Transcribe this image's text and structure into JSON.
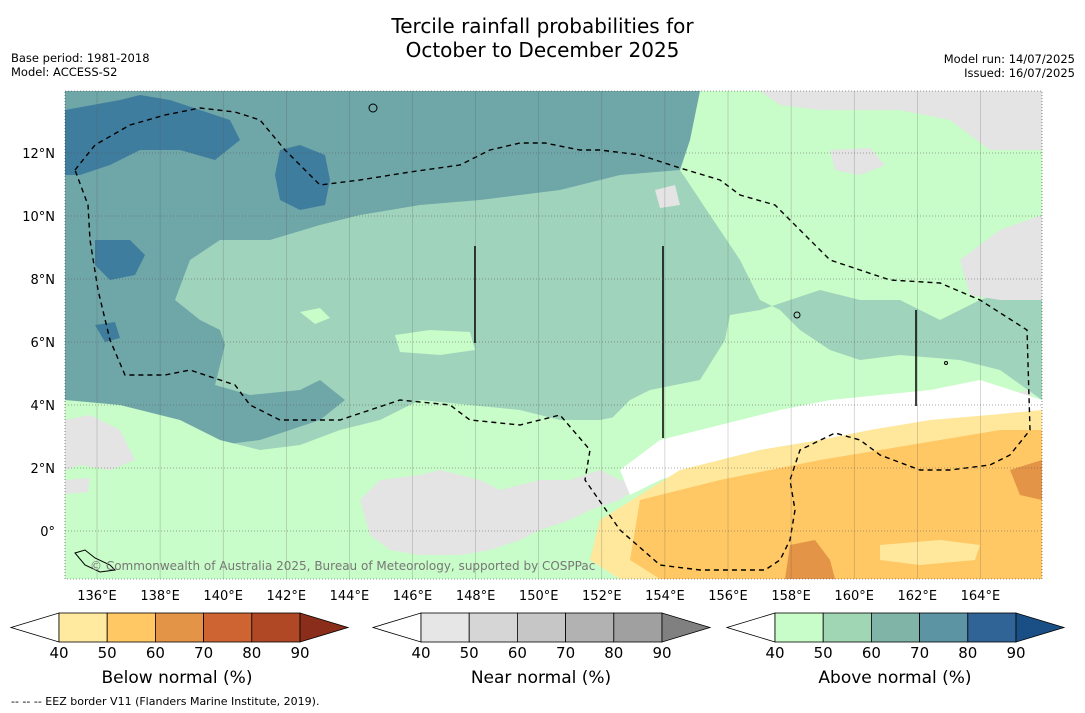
{
  "title_line1": "Tercile rainfall probabilities for",
  "title_line2": "October to December 2025",
  "meta_left": {
    "base_period": "Base period: 1981-2018",
    "model": "Model: ACCESS-S2"
  },
  "meta_right": {
    "model_run": "Model run: 14/07/2025",
    "issued": "Issued: 16/07/2025"
  },
  "lat_labels": [
    "12°N",
    "10°N",
    "8°N",
    "6°N",
    "4°N",
    "2°N",
    "0°"
  ],
  "lon_labels": [
    "136°E",
    "138°E",
    "140°E",
    "142°E",
    "144°E",
    "146°E",
    "148°E",
    "150°E",
    "152°E",
    "154°E",
    "156°E",
    "158°E",
    "160°E",
    "162°E",
    "164°E"
  ],
  "copyright": "© Commonwealth of Australia 2025, Bureau of Meteorology, supported by COSPPac",
  "colorbars": [
    {
      "title": "Below normal (%)",
      "ticks": [
        "40",
        "50",
        "60",
        "70",
        "80",
        "90"
      ],
      "colors": [
        "#ffffff",
        "#ffeaa0",
        "#ffc864",
        "#e39446",
        "#cf6433",
        "#b04826",
        "#8a2d1a"
      ]
    },
    {
      "title": "Near normal (%)",
      "ticks": [
        "40",
        "50",
        "60",
        "70",
        "80",
        "90"
      ],
      "colors": [
        "#ffffff",
        "#e6e6e6",
        "#d6d6d6",
        "#c6c6c6",
        "#b2b2b2",
        "#a0a0a0",
        "#808080"
      ]
    },
    {
      "title": "Above normal (%)",
      "ticks": [
        "40",
        "50",
        "60",
        "70",
        "80",
        "90"
      ],
      "colors": [
        "#ffffff",
        "#c8fcc8",
        "#a0d6b4",
        "#7fb4a6",
        "#5c94a4",
        "#316496",
        "#1a4f85"
      ]
    }
  ],
  "footnote": "--  --  -- EEZ border V11 (Flanders Marine Institute, 2019).",
  "map_colors": {
    "above50": "#c8fcc8",
    "above60": "#9fd3bc",
    "above70": "#6fa6a8",
    "above80": "#3f7d9e",
    "near40": "#e4e4e4",
    "below40": "#ffe89c",
    "below50": "#ffc864",
    "below60": "#e39446"
  }
}
